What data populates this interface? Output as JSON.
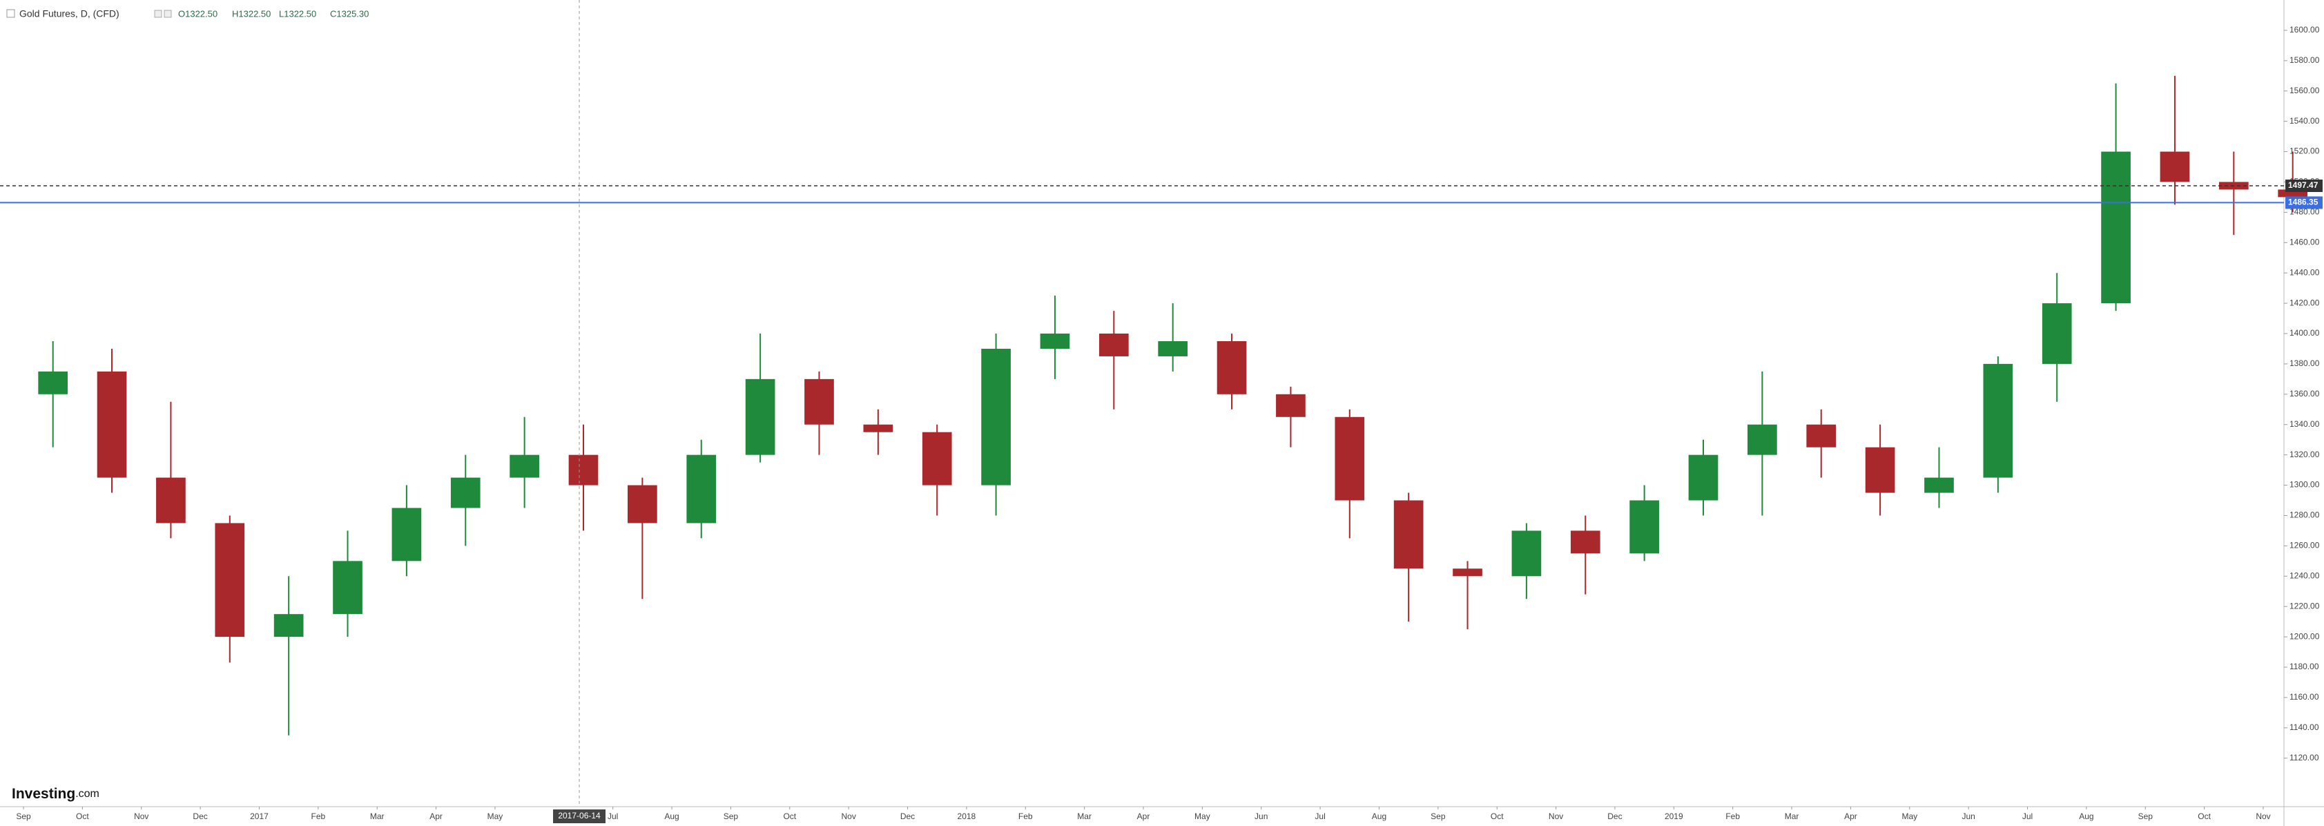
{
  "header": {
    "title": "Gold Futures, D, (CFD)",
    "ohlc": [
      "O1322.50",
      "H1322.50",
      "L1322.50",
      "C1325.30"
    ]
  },
  "logo": {
    "name": "Investing",
    "suffix": ".com"
  },
  "chart_data": {
    "type": "candlestick",
    "categories": [
      "Sep",
      "Oct",
      "Nov",
      "Dec",
      "2017",
      "Feb",
      "Mar",
      "Apr",
      "May",
      null,
      "Jul",
      "Aug",
      "Sep",
      "Oct",
      "Nov",
      "Dec",
      "2018",
      "Feb",
      "Mar",
      "Apr",
      "May",
      "Jun",
      "Jul",
      "Aug",
      "Sep",
      "Oct",
      "Nov",
      "Dec",
      "2019",
      "Feb",
      "Mar",
      "Apr",
      "May",
      "Jun",
      "Jul",
      "Aug",
      "Sep",
      "Oct",
      "Nov"
    ],
    "open": [
      1360,
      1375,
      1305,
      1275,
      1200,
      1215,
      1250,
      1285,
      1305,
      1320,
      1300,
      1275,
      1320,
      1370,
      1340,
      1335,
      1300,
      1390,
      1400,
      1385,
      1395,
      1360,
      1345,
      1290,
      1245,
      1240,
      1270,
      1255,
      1290,
      1320,
      1340,
      1325,
      1295,
      1305,
      1380,
      1420,
      1520,
      1500,
      1495
    ],
    "high": [
      1395,
      1390,
      1355,
      1280,
      1240,
      1270,
      1300,
      1320,
      1345,
      1340,
      1305,
      1330,
      1400,
      1375,
      1350,
      1340,
      1400,
      1425,
      1415,
      1420,
      1400,
      1365,
      1350,
      1295,
      1250,
      1275,
      1280,
      1300,
      1330,
      1375,
      1350,
      1340,
      1325,
      1385,
      1440,
      1565,
      1570,
      1520,
      1520
    ],
    "low": [
      1325,
      1295,
      1265,
      1183,
      1135,
      1200,
      1240,
      1260,
      1285,
      1270,
      1225,
      1265,
      1315,
      1320,
      1320,
      1280,
      1280,
      1370,
      1350,
      1375,
      1350,
      1325,
      1265,
      1210,
      1205,
      1225,
      1228,
      1250,
      1280,
      1280,
      1305,
      1280,
      1285,
      1295,
      1355,
      1415,
      1485,
      1465,
      1480
    ],
    "close": [
      1375,
      1305,
      1275,
      1200,
      1215,
      1250,
      1285,
      1305,
      1320,
      1300,
      1275,
      1320,
      1370,
      1340,
      1335,
      1300,
      1390,
      1400,
      1385,
      1395,
      1360,
      1345,
      1290,
      1245,
      1240,
      1270,
      1255,
      1290,
      1320,
      1340,
      1325,
      1295,
      1305,
      1380,
      1420,
      1520,
      1500,
      1495,
      1490
    ],
    "up_color": "#1f8a3b",
    "down_color": "#a8282c",
    "ylim": [
      1088,
      1620
    ],
    "yticks": [
      {
        "value": 1120,
        "label": "1120.00"
      },
      {
        "value": 1140,
        "label": "1140.00"
      },
      {
        "value": 1160,
        "label": "1160.00"
      },
      {
        "value": 1180,
        "label": "1180.00"
      },
      {
        "value": 1200,
        "label": "1200.00"
      },
      {
        "value": 1220,
        "label": "1220.00"
      },
      {
        "value": 1240,
        "label": "1240.00"
      },
      {
        "value": 1260,
        "label": "1260.00"
      },
      {
        "value": 1280,
        "label": "1280.00"
      },
      {
        "value": 1300,
        "label": "1300.00"
      },
      {
        "value": 1320,
        "label": "1320.00"
      },
      {
        "value": 1340,
        "label": "1340.00"
      },
      {
        "value": 1360,
        "label": "1360.00"
      },
      {
        "value": 1380,
        "label": "1380.00"
      },
      {
        "value": 1400,
        "label": "1400.00"
      },
      {
        "value": 1420,
        "label": "1420.00"
      },
      {
        "value": 1440,
        "label": "1440.00"
      },
      {
        "value": 1460,
        "label": "1460.00"
      },
      {
        "value": 1480,
        "label": "1480.00"
      },
      {
        "value": 1500,
        "label": "1500.00"
      },
      {
        "value": 1520,
        "label": "1520.00"
      },
      {
        "value": 1540,
        "label": "1540.00"
      },
      {
        "value": 1560,
        "label": "1560.00"
      },
      {
        "value": 1580,
        "label": "1580.00"
      },
      {
        "value": 1600,
        "label": "1600.00"
      }
    ],
    "crosshair": {
      "label": "2017-06-14"
    },
    "price_lines": [
      {
        "value": 1497.47,
        "color": "#333333",
        "style": "dashed"
      },
      {
        "value": 1486.35,
        "color": "#3b6fe0",
        "style": "solid"
      }
    ]
  }
}
